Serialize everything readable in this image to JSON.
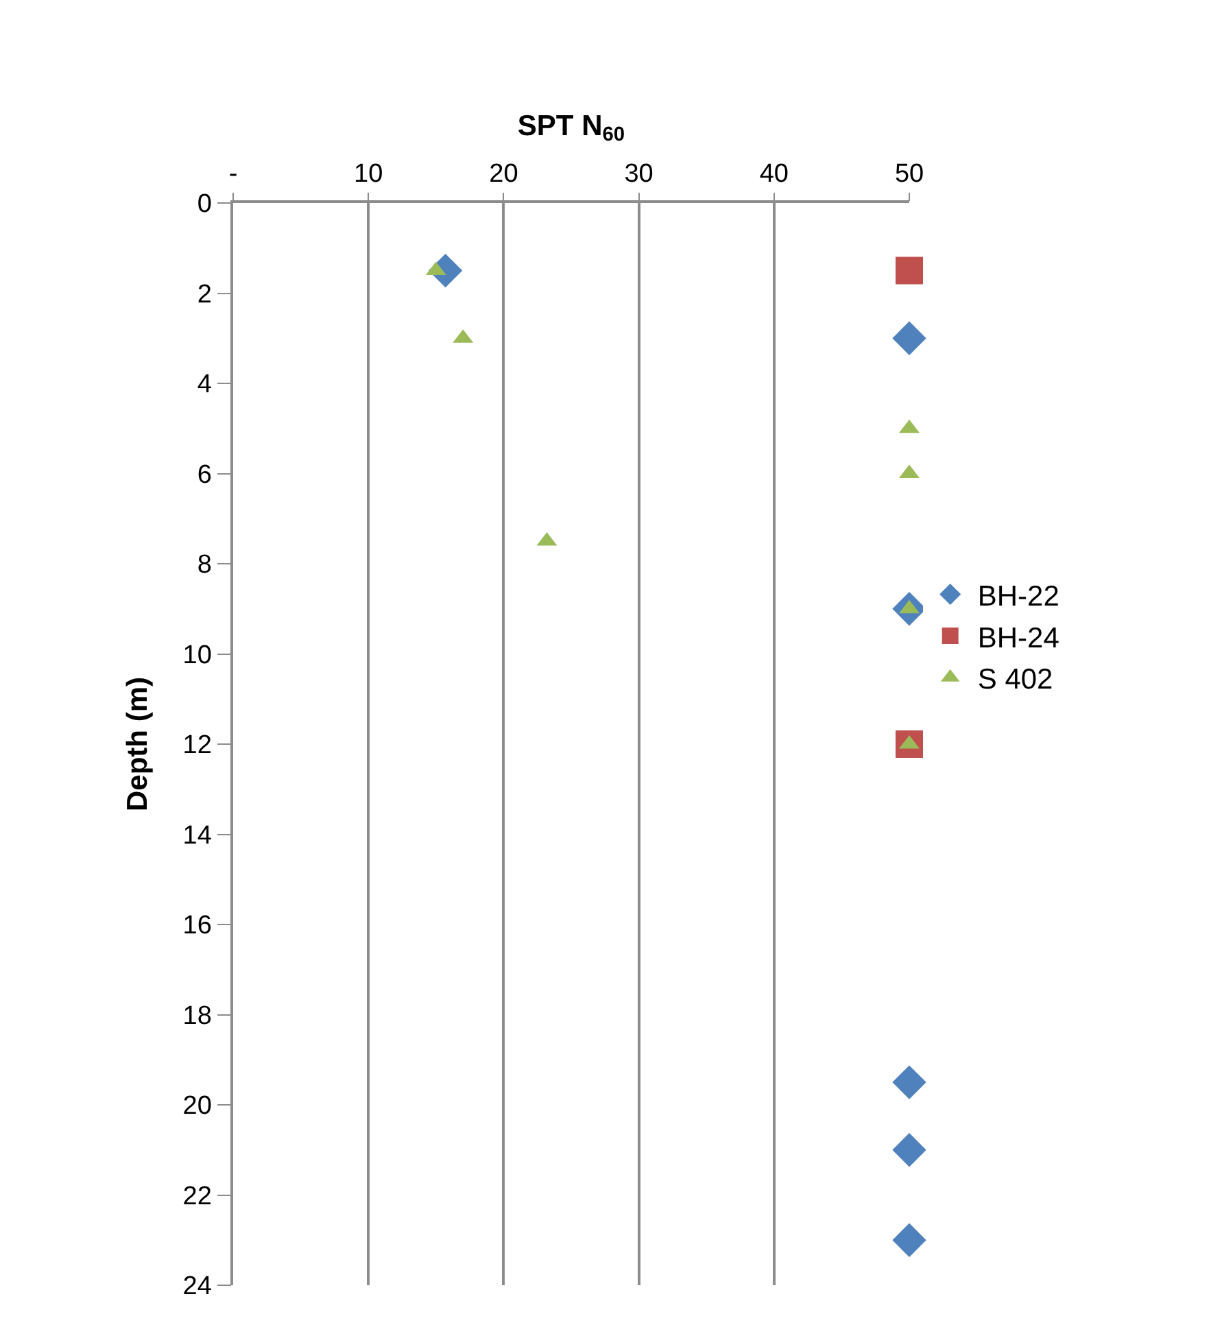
{
  "chart_data": {
    "type": "scatter",
    "xlabel": "SPT N$_{60}$",
    "ylabel": "Depth (m)",
    "xlim": [
      0,
      50
    ],
    "xticks": [
      {
        "value": 0,
        "label": "-"
      },
      10,
      20,
      30,
      40,
      50
    ],
    "ylim": [
      24,
      0
    ],
    "yticks": [
      0,
      2,
      4,
      6,
      8,
      10,
      12,
      14,
      16,
      18,
      20,
      22,
      24
    ],
    "grid": "x",
    "legend": "right",
    "series": [
      {
        "name": "BH-22",
        "color": "#4f81bd",
        "marker": "diamond",
        "x": [
          15.7,
          50,
          50,
          50,
          50,
          50
        ],
        "values": [
          1.5,
          3,
          9,
          19.5,
          21,
          23
        ]
      },
      {
        "name": "BH-24",
        "color": "#c0504d",
        "marker": "square",
        "x": [
          50,
          50
        ],
        "values": [
          1.5,
          12
        ]
      },
      {
        "name": "S 402",
        "color": "#9bbb59",
        "marker": "triangle",
        "x": [
          15,
          17,
          23.2,
          50,
          50,
          50,
          50
        ],
        "values": [
          1.5,
          3,
          7.5,
          5,
          6,
          9,
          12
        ]
      }
    ]
  }
}
